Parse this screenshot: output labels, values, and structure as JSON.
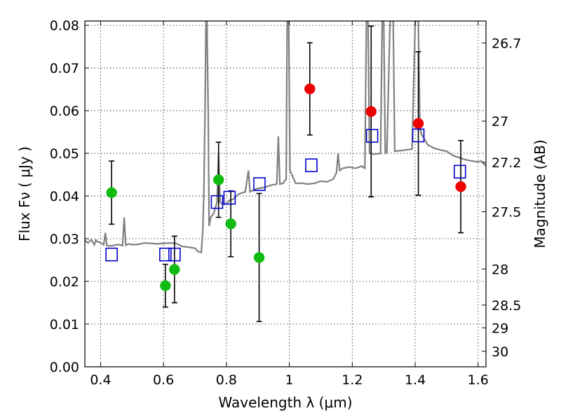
{
  "chart_data": {
    "type": "scatter",
    "title": "",
    "xlabel": "Wavelength  λ (μm)",
    "ylabel": "Flux  Fν  ( μJy )",
    "y2label": "Magnitude (AB)",
    "xlim": [
      0.35,
      1.625
    ],
    "ylim": [
      0.0,
      0.081
    ],
    "grid": true,
    "x_ticks": [
      0.4,
      0.6,
      0.8,
      1.0,
      1.2,
      1.4,
      1.6
    ],
    "x_tick_labels": [
      "0.4",
      "0.6",
      "0.8",
      "1",
      "1.2",
      "1.4",
      "1.6"
    ],
    "y_ticks": [
      0.0,
      0.01,
      0.02,
      0.03,
      0.04,
      0.05,
      0.06,
      0.07,
      0.08
    ],
    "y_tick_labels": [
      "0.00",
      "0.01",
      "0.02",
      "0.03",
      "0.04",
      "0.05",
      "0.06",
      "0.07",
      "0.08"
    ],
    "y2_ticks": [
      {
        "label": "26.7",
        "mag": 26.7
      },
      {
        "label": "27",
        "mag": 27.0
      },
      {
        "label": "27.2",
        "mag": 27.2
      },
      {
        "label": "27.5",
        "mag": 27.5
      },
      {
        "label": "28",
        "mag": 28.0
      },
      {
        "label": "28.5",
        "mag": 28.5
      },
      {
        "label": "29",
        "mag": 29.0
      },
      {
        "label": "30",
        "mag": 30.0
      }
    ],
    "colors": {
      "green": "#11bb11",
      "red": "#ee0000",
      "model": "#808080",
      "square": "#0000cc",
      "errorbar": "#000000"
    },
    "series": [
      {
        "marker": "circle",
        "color": "green",
        "points": [
          {
            "x": 0.435,
            "y": 0.0408,
            "err_low": 0.0074,
            "err_high": 0.0074
          },
          {
            "x": 0.606,
            "y": 0.019,
            "err_low": 0.005,
            "err_high": 0.005
          },
          {
            "x": 0.635,
            "y": 0.0228,
            "err_low": 0.0078,
            "err_high": 0.0078
          },
          {
            "x": 0.775,
            "y": 0.0438,
            "err_low": 0.0088,
            "err_high": 0.0088
          },
          {
            "x": 0.814,
            "y": 0.0335,
            "err_low": 0.0077,
            "err_high": 0.0077
          },
          {
            "x": 0.904,
            "y": 0.0256,
            "err_low": 0.015,
            "err_high": 0.015
          }
        ]
      },
      {
        "marker": "circle",
        "color": "red",
        "points": [
          {
            "x": 1.065,
            "y": 0.0651,
            "err_low": 0.0108,
            "err_high": 0.0108
          },
          {
            "x": 1.26,
            "y": 0.0598,
            "err_low": 0.02,
            "err_high": 0.02
          },
          {
            "x": 1.41,
            "y": 0.057,
            "err_low": 0.0168,
            "err_high": 0.0168
          },
          {
            "x": 1.545,
            "y": 0.0422,
            "err_low": 0.0108,
            "err_high": 0.0108
          }
        ]
      },
      {
        "marker": "square-open",
        "color": "square",
        "points": [
          {
            "x": 0.435,
            "y": 0.0263
          },
          {
            "x": 0.606,
            "y": 0.0263
          },
          {
            "x": 0.635,
            "y": 0.0263
          },
          {
            "x": 0.77,
            "y": 0.0386
          },
          {
            "x": 0.81,
            "y": 0.0396
          },
          {
            "x": 0.905,
            "y": 0.0428
          },
          {
            "x": 1.07,
            "y": 0.0472
          },
          {
            "x": 1.263,
            "y": 0.0541
          },
          {
            "x": 1.41,
            "y": 0.0542
          },
          {
            "x": 1.542,
            "y": 0.0457
          }
        ]
      }
    ],
    "model_spectrum": {
      "color": "model",
      "points": [
        [
          0.35,
          0.0296
        ],
        [
          0.36,
          0.029
        ],
        [
          0.37,
          0.0298
        ],
        [
          0.38,
          0.0286
        ],
        [
          0.385,
          0.0297
        ],
        [
          0.39,
          0.0293
        ],
        [
          0.4,
          0.0291
        ],
        [
          0.41,
          0.0286
        ],
        [
          0.415,
          0.0314
        ],
        [
          0.42,
          0.0284
        ],
        [
          0.43,
          0.0283
        ],
        [
          0.44,
          0.0284
        ],
        [
          0.45,
          0.0286
        ],
        [
          0.46,
          0.0286
        ],
        [
          0.47,
          0.0284
        ],
        [
          0.475,
          0.035
        ],
        [
          0.48,
          0.0285
        ],
        [
          0.49,
          0.0288
        ],
        [
          0.5,
          0.0286
        ],
        [
          0.52,
          0.0287
        ],
        [
          0.54,
          0.029
        ],
        [
          0.56,
          0.0289
        ],
        [
          0.58,
          0.0288
        ],
        [
          0.6,
          0.0289
        ],
        [
          0.62,
          0.029
        ],
        [
          0.64,
          0.0289
        ],
        [
          0.66,
          0.0282
        ],
        [
          0.68,
          0.028
        ],
        [
          0.7,
          0.0278
        ],
        [
          0.71,
          0.027
        ],
        [
          0.72,
          0.0268
        ],
        [
          0.725,
          0.032
        ],
        [
          0.728,
          0.04
        ],
        [
          0.732,
          0.06
        ],
        [
          0.735,
          0.081
        ],
        [
          0.738,
          0.081
        ],
        [
          0.742,
          0.06
        ],
        [
          0.745,
          0.033
        ],
        [
          0.75,
          0.035
        ],
        [
          0.76,
          0.036
        ],
        [
          0.77,
          0.0385
        ],
        [
          0.775,
          0.05
        ],
        [
          0.78,
          0.0385
        ],
        [
          0.79,
          0.038
        ],
        [
          0.8,
          0.0382
        ],
        [
          0.81,
          0.039
        ],
        [
          0.82,
          0.0392
        ],
        [
          0.84,
          0.0405
        ],
        [
          0.86,
          0.041
        ],
        [
          0.87,
          0.046
        ],
        [
          0.875,
          0.041
        ],
        [
          0.88,
          0.0412
        ],
        [
          0.9,
          0.0418
        ],
        [
          0.92,
          0.042
        ],
        [
          0.94,
          0.0425
        ],
        [
          0.96,
          0.0428
        ],
        [
          0.965,
          0.054
        ],
        [
          0.97,
          0.0428
        ],
        [
          0.98,
          0.043
        ],
        [
          0.99,
          0.044
        ],
        [
          0.993,
          0.081
        ],
        [
          0.998,
          0.081
        ],
        [
          1.002,
          0.046
        ],
        [
          1.02,
          0.043
        ],
        [
          1.04,
          0.043
        ],
        [
          1.06,
          0.0428
        ],
        [
          1.08,
          0.043
        ],
        [
          1.1,
          0.0435
        ],
        [
          1.12,
          0.0433
        ],
        [
          1.14,
          0.044
        ],
        [
          1.15,
          0.0455
        ],
        [
          1.155,
          0.05
        ],
        [
          1.16,
          0.046
        ],
        [
          1.17,
          0.0465
        ],
        [
          1.19,
          0.0468
        ],
        [
          1.21,
          0.0465
        ],
        [
          1.23,
          0.047
        ],
        [
          1.24,
          0.0465
        ],
        [
          1.245,
          0.081
        ],
        [
          1.25,
          0.081
        ],
        [
          1.255,
          0.05
        ],
        [
          1.27,
          0.0498
        ],
        [
          1.29,
          0.05
        ],
        [
          1.295,
          0.081
        ],
        [
          1.3,
          0.081
        ],
        [
          1.305,
          0.05
        ],
        [
          1.31,
          0.0502
        ],
        [
          1.32,
          0.081
        ],
        [
          1.33,
          0.081
        ],
        [
          1.335,
          0.0505
        ],
        [
          1.35,
          0.0506
        ],
        [
          1.37,
          0.0508
        ],
        [
          1.39,
          0.051
        ],
        [
          1.4,
          0.081
        ],
        [
          1.41,
          0.081
        ],
        [
          1.415,
          0.056
        ],
        [
          1.42,
          0.0545
        ],
        [
          1.44,
          0.052
        ],
        [
          1.46,
          0.0512
        ],
        [
          1.48,
          0.0508
        ],
        [
          1.5,
          0.0505
        ],
        [
          1.52,
          0.0495
        ],
        [
          1.54,
          0.049
        ],
        [
          1.56,
          0.0485
        ],
        [
          1.58,
          0.0482
        ],
        [
          1.6,
          0.048
        ],
        [
          1.61,
          0.0482
        ],
        [
          1.625,
          0.047
        ]
      ]
    }
  }
}
